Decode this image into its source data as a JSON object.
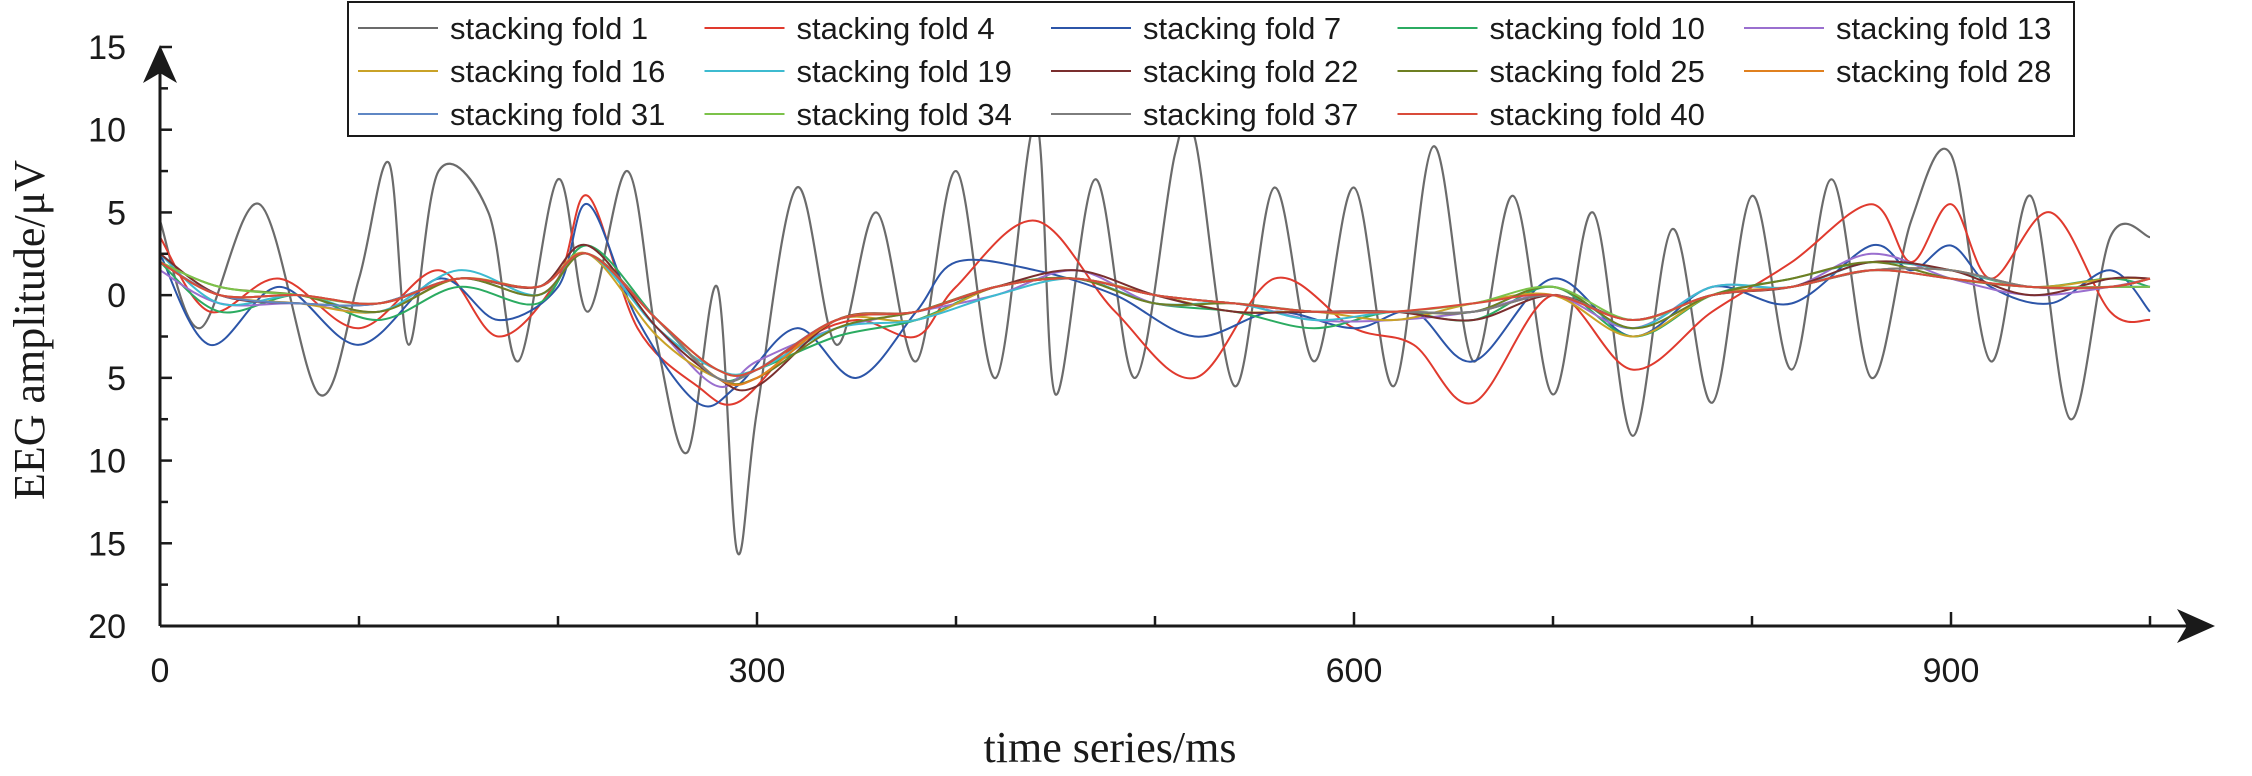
{
  "chart_data": {
    "type": "line",
    "title": "",
    "xlabel": "time series/ms",
    "ylabel": "EEG amplitude/μV",
    "xlim": [
      0,
      1000
    ],
    "ylim": [
      -20,
      15
    ],
    "x_ticks": [
      0,
      300,
      600,
      900
    ],
    "x_tick_labels": [
      "0",
      "300",
      "600",
      "900"
    ],
    "y_ticks": [
      15,
      10,
      5,
      0,
      -5,
      -10,
      -15,
      -20
    ],
    "y_tick_labels": [
      "15",
      "10",
      "5",
      "0",
      "5",
      "10",
      "15",
      "20"
    ],
    "grid": false,
    "legend_position": "top",
    "series": [
      {
        "name": "stacking fold 1",
        "color": "#6b6b6b",
        "x": [
          0,
          20,
          50,
          80,
          100,
          115,
          125,
          140,
          165,
          180,
          200,
          215,
          235,
          250,
          265,
          280,
          290,
          300,
          320,
          340,
          360,
          380,
          400,
          420,
          440,
          450,
          470,
          490,
          510,
          520,
          540,
          560,
          580,
          600,
          620,
          640,
          660,
          680,
          700,
          720,
          740,
          760,
          780,
          800,
          820,
          840,
          860,
          880,
          900,
          920,
          940,
          960,
          980,
          1000
        ],
        "values": [
          4.5,
          -2.0,
          5.5,
          -6.0,
          1.0,
          8.0,
          -3.0,
          7.5,
          5.0,
          -4.0,
          7.0,
          -1.0,
          7.5,
          -3.0,
          -9.5,
          0.5,
          -15.5,
          -7.0,
          6.5,
          -3.0,
          5.0,
          -4.0,
          7.5,
          -5.0,
          10.5,
          -6.0,
          7.0,
          -5.0,
          8.5,
          9.5,
          -5.5,
          6.5,
          -4.0,
          6.5,
          -5.5,
          9.0,
          -4.0,
          6.0,
          -6.0,
          5.0,
          -8.5,
          4.0,
          -6.5,
          6.0,
          -4.5,
          7.0,
          -5.0,
          4.5,
          8.5,
          -4.0,
          6.0,
          -7.5,
          3.5,
          3.5
        ]
      },
      {
        "name": "stacking fold 4",
        "color": "#e03a2e",
        "x": [
          0,
          25,
          60,
          100,
          140,
          170,
          200,
          215,
          240,
          270,
          290,
          320,
          350,
          380,
          400,
          440,
          480,
          520,
          560,
          600,
          630,
          660,
          700,
          740,
          780,
          820,
          860,
          880,
          900,
          920,
          950,
          980,
          1000
        ],
        "values": [
          3.5,
          -1.0,
          1.0,
          -2.0,
          1.5,
          -2.5,
          1.0,
          6.0,
          -2.0,
          -5.5,
          -6.5,
          -3.0,
          -1.5,
          -2.5,
          0.5,
          4.5,
          -1.0,
          -5.0,
          1.0,
          -2.0,
          -3.0,
          -6.5,
          0.0,
          -4.5,
          -1.0,
          2.0,
          5.5,
          2.0,
          5.5,
          1.0,
          5.0,
          -1.0,
          -1.5
        ]
      },
      {
        "name": "stacking fold 7",
        "color": "#2c55a8",
        "x": [
          0,
          25,
          60,
          100,
          140,
          170,
          200,
          215,
          240,
          270,
          290,
          320,
          350,
          380,
          400,
          440,
          480,
          520,
          560,
          600,
          630,
          660,
          700,
          740,
          780,
          820,
          860,
          880,
          900,
          920,
          950,
          980,
          1000
        ],
        "values": [
          2.5,
          -3.0,
          0.5,
          -3.0,
          1.0,
          -1.5,
          0.5,
          5.5,
          -1.5,
          -6.5,
          -5.5,
          -2.0,
          -5.0,
          -1.0,
          2.0,
          1.5,
          0.0,
          -2.5,
          -1.0,
          -2.0,
          -1.0,
          -4.0,
          1.0,
          -2.5,
          0.5,
          -0.5,
          3.0,
          1.5,
          3.0,
          0.5,
          -0.5,
          1.5,
          -1.0
        ]
      },
      {
        "name": "stacking fold 10",
        "color": "#2bab61",
        "x": [
          0,
          30,
          70,
          110,
          150,
          190,
          215,
          250,
          280,
          300,
          340,
          380,
          420,
          460,
          500,
          540,
          580,
          620,
          660,
          700,
          740,
          780,
          820,
          860,
          900,
          940,
          980,
          1000
        ],
        "values": [
          2.0,
          -1.0,
          0.0,
          -1.5,
          0.5,
          -0.5,
          3.0,
          -1.5,
          -5.0,
          -4.5,
          -2.5,
          -1.5,
          0.5,
          1.0,
          -0.5,
          -1.0,
          -2.0,
          -1.0,
          -1.5,
          0.5,
          -2.5,
          0.0,
          1.0,
          2.0,
          1.5,
          0.5,
          1.0,
          0.5
        ]
      },
      {
        "name": "stacking fold 13",
        "color": "#9a6fcf",
        "x": [
          0,
          30,
          70,
          110,
          150,
          190,
          215,
          250,
          280,
          300,
          340,
          380,
          420,
          460,
          500,
          540,
          580,
          620,
          660,
          700,
          740,
          780,
          820,
          860,
          900,
          940,
          980,
          1000
        ],
        "values": [
          1.5,
          -0.5,
          -0.5,
          -1.0,
          1.0,
          0.0,
          2.5,
          -2.0,
          -5.5,
          -4.0,
          -2.0,
          -1.0,
          0.0,
          1.5,
          -0.5,
          -0.5,
          -1.5,
          -1.5,
          -1.0,
          0.0,
          -2.0,
          0.5,
          0.5,
          2.5,
          1.0,
          0.0,
          0.5,
          1.0
        ]
      },
      {
        "name": "stacking fold 16",
        "color": "#c9a227",
        "x": [
          0,
          30,
          70,
          110,
          150,
          190,
          215,
          250,
          280,
          300,
          340,
          380,
          420,
          460,
          500,
          540,
          580,
          620,
          660,
          700,
          740,
          780,
          820,
          860,
          900,
          940,
          980,
          1000
        ],
        "values": [
          2.0,
          0.0,
          -0.5,
          -1.0,
          1.0,
          0.5,
          2.5,
          -2.5,
          -5.0,
          -5.0,
          -1.5,
          -1.5,
          0.5,
          1.0,
          0.0,
          -1.0,
          -1.0,
          -1.5,
          -0.5,
          0.0,
          -2.5,
          0.0,
          0.5,
          1.5,
          1.5,
          0.5,
          1.0,
          1.0
        ]
      },
      {
        "name": "stacking fold 19",
        "color": "#3dbbd0",
        "x": [
          0,
          30,
          70,
          110,
          150,
          190,
          215,
          250,
          280,
          300,
          340,
          380,
          420,
          460,
          500,
          540,
          580,
          620,
          660,
          700,
          740,
          780,
          820,
          860,
          900,
          940,
          980,
          1000
        ],
        "values": [
          2.5,
          -0.5,
          0.0,
          -1.0,
          1.5,
          0.0,
          2.5,
          -2.0,
          -4.5,
          -4.5,
          -2.0,
          -1.5,
          0.0,
          1.0,
          -0.5,
          -0.5,
          -1.5,
          -1.0,
          -1.0,
          0.5,
          -2.0,
          0.5,
          0.5,
          2.0,
          1.5,
          0.5,
          0.5,
          0.5
        ]
      },
      {
        "name": "stacking fold 22",
        "color": "#7a2e2e",
        "x": [
          0,
          30,
          70,
          110,
          150,
          190,
          215,
          250,
          280,
          300,
          340,
          380,
          420,
          460,
          500,
          540,
          580,
          620,
          660,
          700,
          740,
          780,
          820,
          860,
          900,
          940,
          980,
          1000
        ],
        "values": [
          2.5,
          0.0,
          -0.5,
          -0.5,
          1.0,
          0.5,
          3.0,
          -2.0,
          -5.0,
          -5.5,
          -1.5,
          -1.0,
          0.5,
          1.5,
          0.0,
          -1.0,
          -1.0,
          -1.0,
          -1.5,
          0.0,
          -1.5,
          0.0,
          0.5,
          2.0,
          1.5,
          0.0,
          1.0,
          1.0
        ]
      },
      {
        "name": "stacking fold 25",
        "color": "#6e7f22",
        "x": [
          0,
          30,
          70,
          110,
          150,
          190,
          215,
          250,
          280,
          300,
          340,
          380,
          420,
          460,
          500,
          540,
          580,
          620,
          660,
          700,
          740,
          780,
          820,
          860,
          900,
          940,
          980,
          1000
        ],
        "values": [
          2.0,
          0.5,
          0.0,
          -1.0,
          1.0,
          0.0,
          2.5,
          -1.5,
          -5.0,
          -5.0,
          -2.0,
          -1.0,
          0.5,
          1.0,
          -0.5,
          -0.5,
          -1.0,
          -1.0,
          -1.0,
          0.5,
          -2.0,
          0.0,
          1.0,
          2.0,
          1.0,
          0.5,
          0.5,
          1.0
        ]
      },
      {
        "name": "stacking fold 28",
        "color": "#e0801f",
        "x": [
          0,
          30,
          70,
          110,
          150,
          190,
          215,
          250,
          280,
          300,
          340,
          380,
          420,
          460,
          500,
          540,
          580,
          620,
          660,
          700,
          740,
          780,
          820,
          860,
          900,
          940,
          980,
          1000
        ],
        "values": [
          2.0,
          0.0,
          0.0,
          -0.5,
          1.0,
          0.5,
          2.5,
          -1.5,
          -5.0,
          -5.0,
          -1.5,
          -1.0,
          0.5,
          1.0,
          0.0,
          -0.5,
          -1.0,
          -1.0,
          -1.0,
          0.0,
          -1.5,
          0.0,
          0.5,
          1.5,
          1.5,
          0.5,
          0.5,
          1.0
        ]
      },
      {
        "name": "stacking fold 31",
        "color": "#5f87c4",
        "x": [
          0,
          30,
          70,
          110,
          150,
          190,
          215,
          250,
          280,
          300,
          340,
          380,
          420,
          460,
          500,
          540,
          580,
          620,
          660,
          700,
          740,
          780,
          820,
          860,
          900,
          940,
          980,
          1000
        ],
        "values": [
          2.0,
          0.0,
          -0.5,
          -0.5,
          1.0,
          0.5,
          2.5,
          -1.5,
          -5.0,
          -4.5,
          -1.5,
          -1.0,
          0.5,
          1.0,
          0.0,
          -0.5,
          -1.0,
          -1.0,
          -1.0,
          0.0,
          -1.5,
          0.0,
          0.5,
          1.5,
          1.0,
          0.5,
          0.5,
          0.5
        ]
      },
      {
        "name": "stacking fold 34",
        "color": "#7cc24a",
        "x": [
          0,
          30,
          70,
          110,
          150,
          190,
          215,
          250,
          280,
          300,
          340,
          380,
          420,
          460,
          500,
          540,
          580,
          620,
          660,
          700,
          740,
          780,
          820,
          860,
          900,
          940,
          980,
          1000
        ],
        "values": [
          2.0,
          0.5,
          0.0,
          -0.5,
          1.0,
          0.5,
          2.5,
          -1.5,
          -4.5,
          -4.5,
          -1.5,
          -1.0,
          0.5,
          1.0,
          0.0,
          -0.5,
          -1.0,
          -1.0,
          -0.5,
          0.5,
          -1.5,
          0.0,
          0.5,
          1.5,
          1.0,
          0.5,
          0.5,
          0.5
        ]
      },
      {
        "name": "stacking fold 37",
        "color": "#7d7d7d",
        "x": [
          0,
          30,
          70,
          110,
          150,
          190,
          215,
          250,
          280,
          300,
          340,
          380,
          420,
          460,
          500,
          540,
          580,
          620,
          660,
          700,
          740,
          780,
          820,
          860,
          900,
          940,
          980,
          1000
        ],
        "values": [
          2.0,
          0.0,
          0.0,
          -0.5,
          1.0,
          0.5,
          2.5,
          -1.5,
          -5.0,
          -4.5,
          -1.5,
          -1.0,
          0.5,
          1.0,
          0.0,
          -0.5,
          -1.0,
          -1.0,
          -1.0,
          0.0,
          -1.5,
          0.0,
          0.5,
          1.5,
          1.5,
          0.5,
          0.5,
          1.0
        ]
      },
      {
        "name": "stacking fold 40",
        "color": "#d94b3a",
        "x": [
          0,
          30,
          70,
          110,
          150,
          190,
          215,
          250,
          280,
          300,
          340,
          380,
          420,
          460,
          500,
          540,
          580,
          620,
          660,
          700,
          740,
          780,
          820,
          860,
          900,
          940,
          980,
          1000
        ],
        "values": [
          2.0,
          0.0,
          0.0,
          -0.5,
          1.0,
          0.5,
          2.5,
          -1.5,
          -4.5,
          -4.5,
          -1.5,
          -1.0,
          0.5,
          1.0,
          0.0,
          -0.5,
          -1.0,
          -1.0,
          -0.5,
          0.0,
          -1.5,
          0.0,
          0.5,
          1.5,
          1.0,
          0.5,
          0.5,
          1.0
        ]
      }
    ]
  }
}
